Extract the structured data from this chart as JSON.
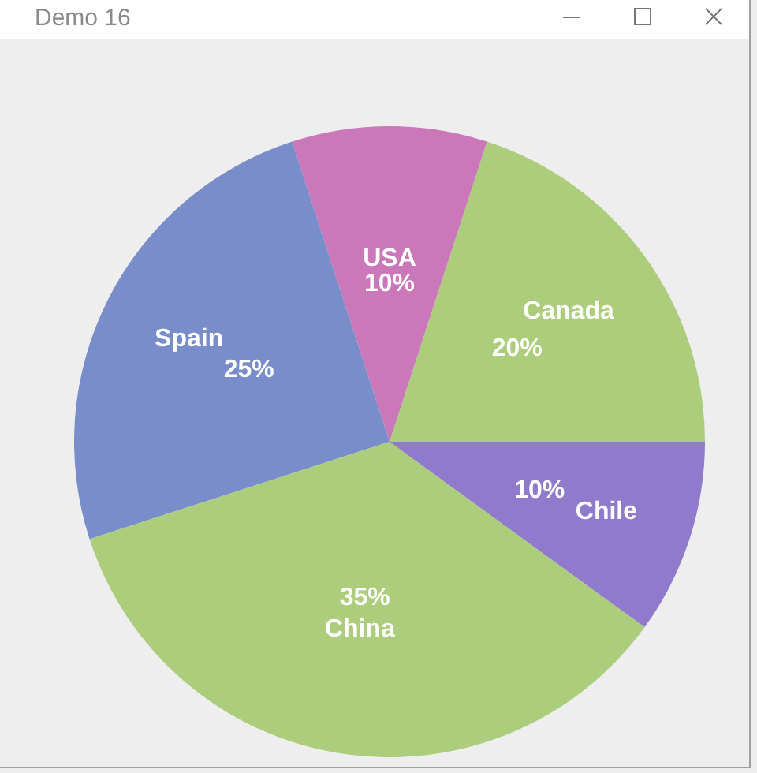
{
  "chart_data": {
    "type": "pie",
    "title": "Demo 16",
    "categories": [
      "Canada",
      "USA",
      "Spain",
      "China",
      "Chile"
    ],
    "values": [
      20,
      10,
      25,
      35,
      10
    ],
    "colors": [
      "#accd7c",
      "#cb78bb",
      "#798dcb",
      "#accd7c",
      "#907acb"
    ],
    "value_labels": [
      "20%",
      "10%",
      "25%",
      "35%",
      "10%"
    ]
  }
}
